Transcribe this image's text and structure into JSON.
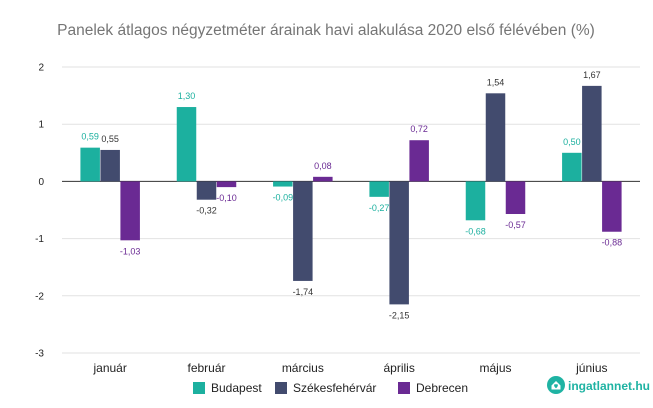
{
  "chart_data": {
    "type": "bar",
    "title": "Panelek átlagos négyzetméter árainak havi alakulása 2020 első félévében (%)",
    "xlabel": "",
    "ylabel": "",
    "ylim": [
      -3,
      2
    ],
    "yticks": [
      2,
      1,
      0,
      -1,
      -2,
      -3
    ],
    "grid": true,
    "categories": [
      "január",
      "február",
      "március",
      "április",
      "május",
      "június"
    ],
    "series": [
      {
        "name": "Budapest",
        "color": "#1cb09f",
        "values": [
          0.59,
          1.3,
          -0.09,
          -0.27,
          -0.68,
          0.5
        ],
        "labels": [
          "0,59",
          "1,30",
          "-0,09",
          "-0,27",
          "-0,68",
          "0,50"
        ]
      },
      {
        "name": "Székesfehérvár",
        "color": "#424b6e",
        "values": [
          0.55,
          -0.32,
          -1.74,
          -2.15,
          1.54,
          1.67
        ],
        "labels": [
          "0,55",
          "-0,32",
          "-1,74",
          "-2,15",
          "1,54",
          "1,67"
        ]
      },
      {
        "name": "Debrecen",
        "color": "#6a2a93",
        "values": [
          -1.03,
          -0.1,
          0.08,
          0.72,
          -0.57,
          -0.88
        ],
        "labels": [
          "-1,03",
          "-0,10",
          "0,08",
          "0,72",
          "-0,57",
          "-0,88"
        ]
      }
    ],
    "legend_position": "bottom-center"
  },
  "branding": {
    "logo_text": "ingatlannet.hu",
    "logo_icon": "house-heart-icon",
    "accent": "#1fb3a3"
  }
}
